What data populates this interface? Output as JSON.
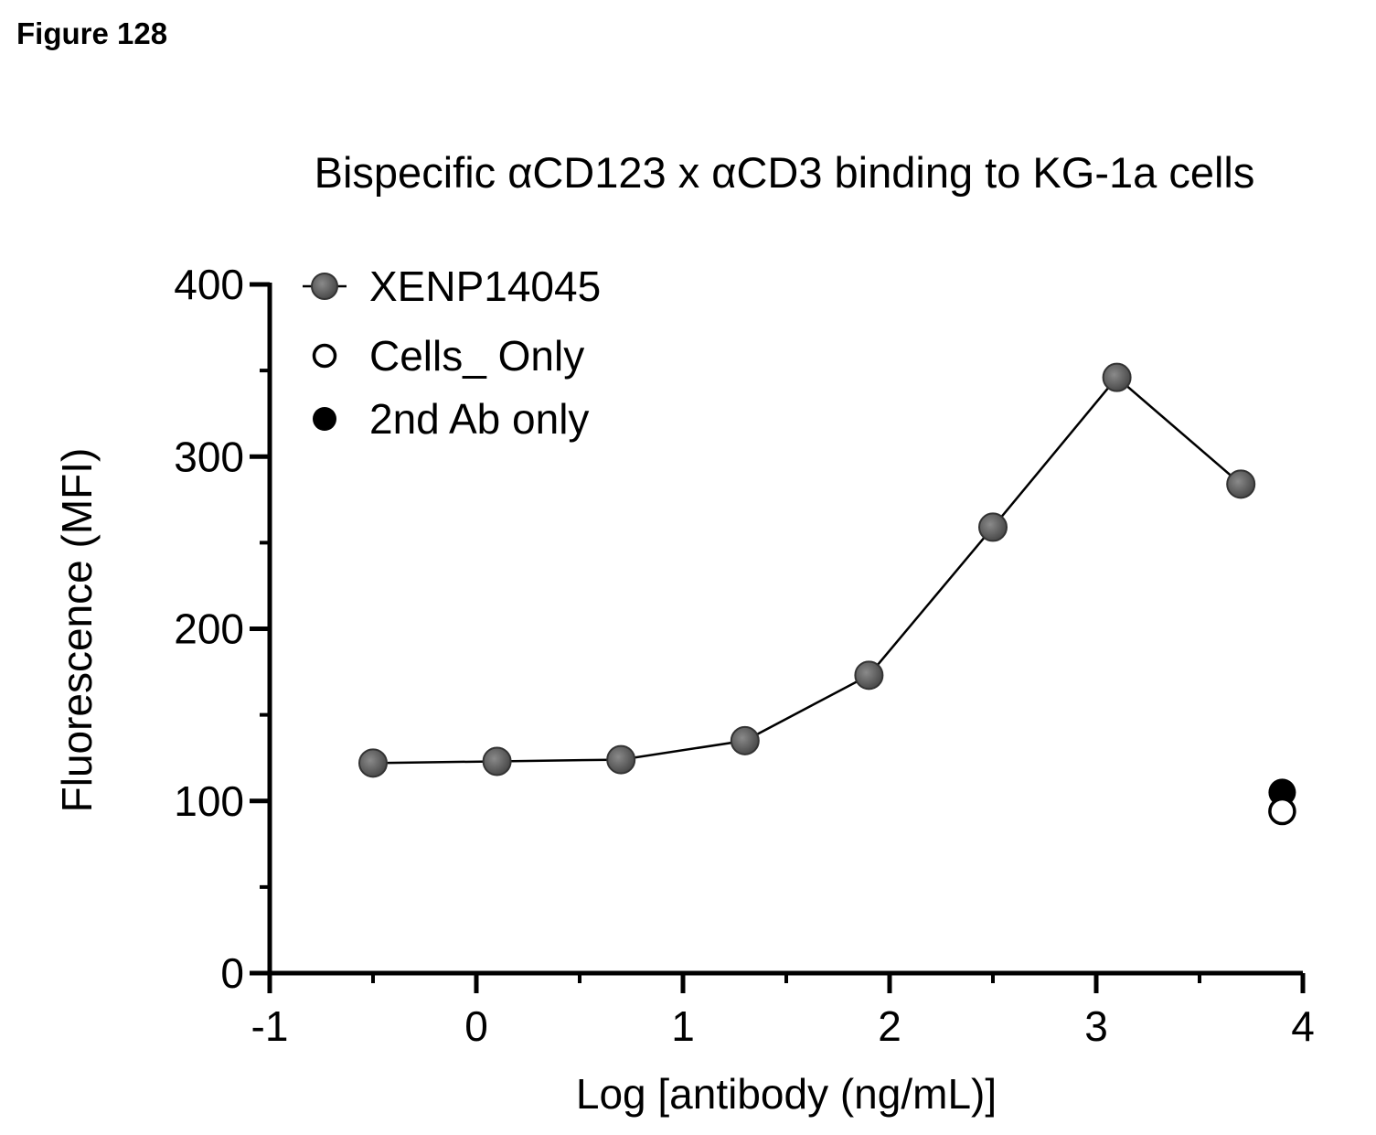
{
  "figure_label": "Figure 128",
  "chart_data": {
    "type": "scatter",
    "title": "Bispecific αCD123 x αCD3 binding to KG-1a cells",
    "xlabel": "Log [antibody (ng/mL)]",
    "ylabel": "Fluorescence (MFI)",
    "xlim": [
      -1,
      4
    ],
    "ylim": [
      0,
      400
    ],
    "xticks": [
      "-1",
      "0",
      "1",
      "2",
      "3",
      "4"
    ],
    "yticks": [
      "0",
      "100",
      "200",
      "300",
      "400"
    ],
    "legend_position": "top-left",
    "series": [
      {
        "name": "XENP14045",
        "style": "line+marker",
        "marker": "filled-gray",
        "color": "#555555",
        "x": [
          -0.5,
          0.1,
          0.7,
          1.3,
          1.9,
          2.5,
          3.1,
          3.7
        ],
        "y": [
          122,
          123,
          124,
          135,
          173,
          259,
          346,
          284
        ]
      },
      {
        "name": "Cells_ Only",
        "style": "marker",
        "marker": "open-circle",
        "color": "#000000",
        "x": [
          3.9
        ],
        "y": [
          94
        ]
      },
      {
        "name": "2nd Ab only",
        "style": "marker",
        "marker": "filled-black",
        "color": "#000000",
        "x": [
          3.9
        ],
        "y": [
          105
        ]
      }
    ]
  }
}
